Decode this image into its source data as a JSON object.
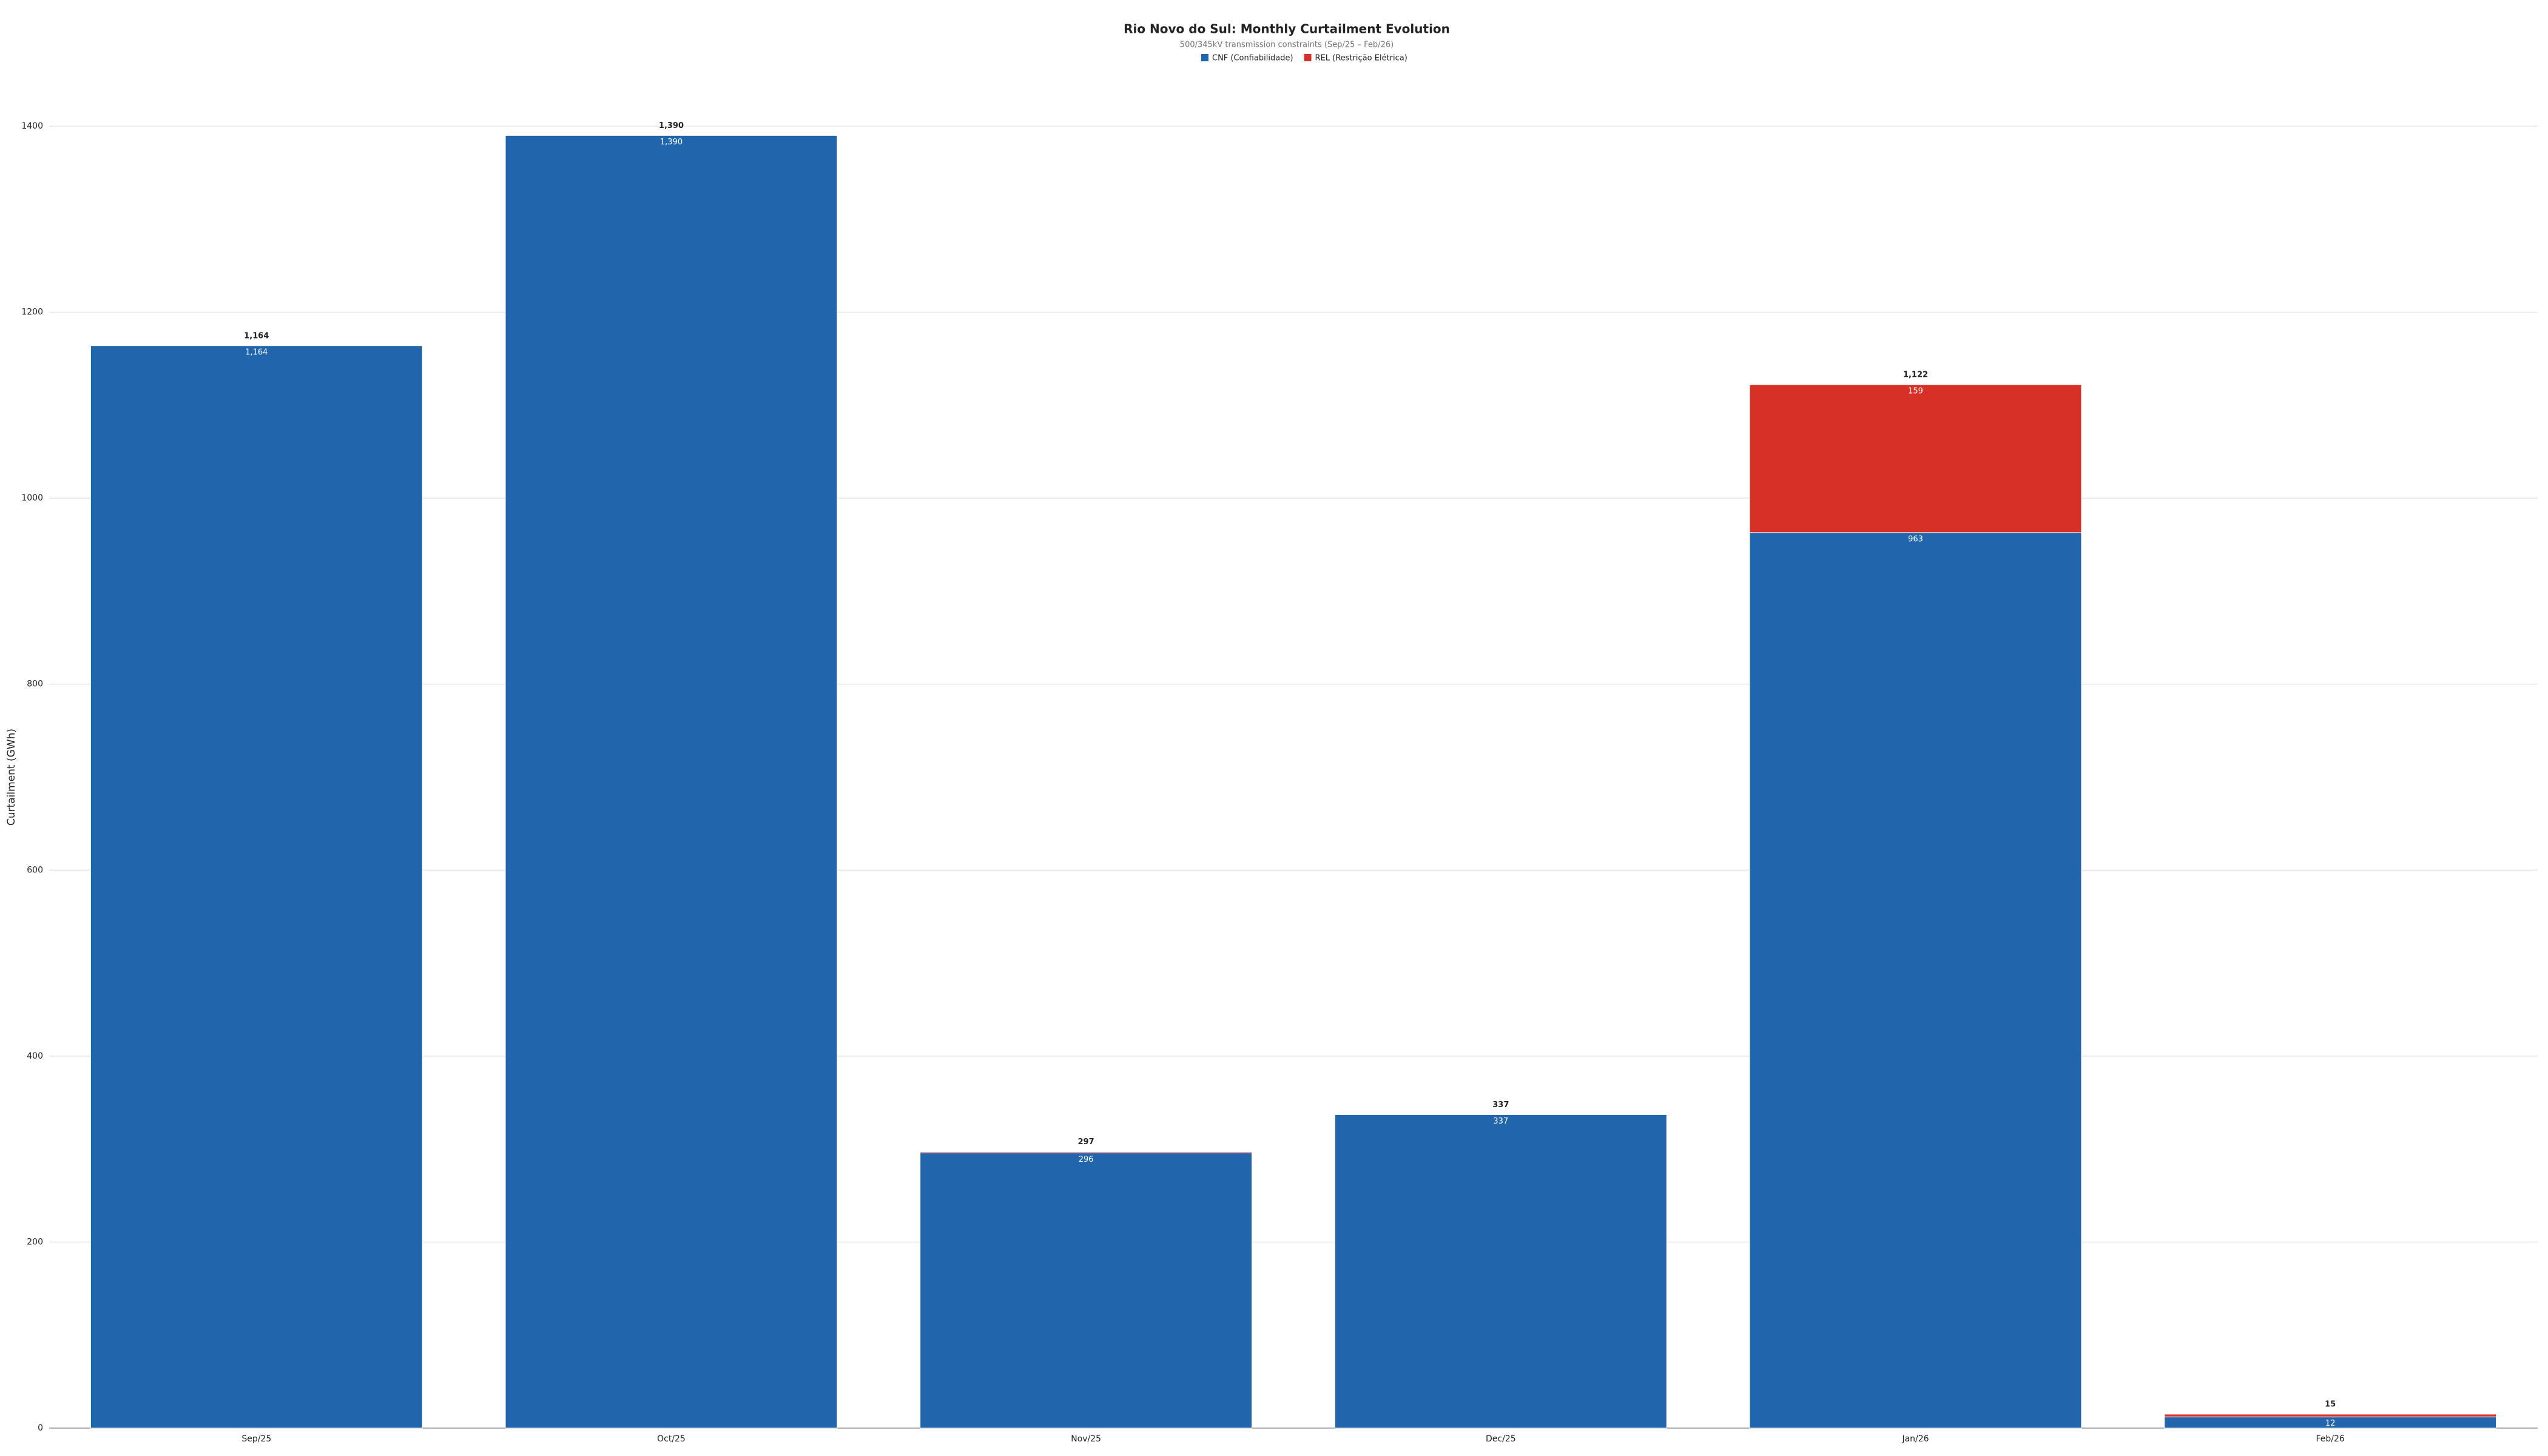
{
  "chart_data": {
    "type": "stacked_bar",
    "title": "Rio Novo do Sul: Monthly Curtailment Evolution",
    "subtitle": "500/345kV transmission constraints (Sep/25 – Feb/26)",
    "y_label": "Curtailment (GWh)",
    "categories": [
      "Sep/25",
      "Oct/25",
      "Nov/25",
      "Dec/25",
      "Jan/26",
      "Feb/26"
    ],
    "series": [
      {
        "name": "CNF (Confiabilidade)",
        "color": "#2166ac",
        "values": [
          1164,
          1390,
          296,
          337,
          963,
          12
        ],
        "value_labels": [
          "1,164",
          "1,390",
          "296",
          "337",
          "963",
          "12"
        ]
      },
      {
        "name": "REL (Restrição Elétrica)",
        "color": "#d73027",
        "values": [
          0,
          0,
          1,
          0,
          159,
          3
        ],
        "value_labels": [
          null,
          null,
          null,
          null,
          "159",
          null
        ]
      }
    ],
    "totals": {
      "values": [
        1164,
        1390,
        297,
        337,
        1122,
        15
      ],
      "value_labels": [
        "1,164",
        "1,390",
        "297",
        "337",
        "1,122",
        "15"
      ]
    },
    "ylim": [
      0,
      1400
    ],
    "yticks": [
      0,
      200,
      400,
      600,
      800,
      1000,
      1200,
      1400
    ],
    "grid": true
  }
}
